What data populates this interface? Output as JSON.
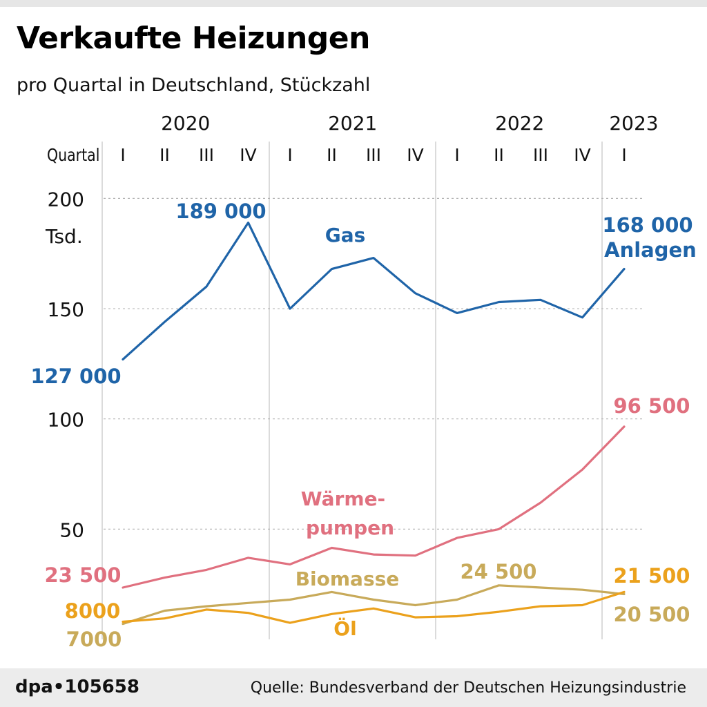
{
  "header": {
    "title": "Verkaufte Heizungen",
    "subtitle": "pro Quartal in Deutschland, Stückzahl"
  },
  "footer": {
    "credit": "dpa•105658",
    "source": "Quelle: Bundesverband der Deutschen Heizungsindustrie"
  },
  "chart_data": {
    "type": "line",
    "title": "Verkaufte Heizungen",
    "subtitle": "pro Quartal in Deutschland, Stückzahl",
    "quarter_axis_label": "Quartal",
    "years": [
      "2020",
      "2021",
      "2022",
      "2023"
    ],
    "categories": [
      "I",
      "II",
      "III",
      "IV",
      "I",
      "II",
      "III",
      "IV",
      "I",
      "II",
      "III",
      "IV",
      "I"
    ],
    "y_unit": "Tsd.",
    "ylim": [
      0,
      210
    ],
    "y_ticks": [
      50,
      100,
      150,
      200
    ],
    "grid": "dotted horizontal at ticks, vertical lines at year boundaries",
    "series": [
      {
        "name": "Gas",
        "color": "#1f64a8",
        "values": [
          127,
          144,
          160,
          189,
          150,
          168,
          173,
          157,
          148,
          153,
          154,
          146,
          168
        ]
      },
      {
        "name": "Wärme-pumpen",
        "color": "#e0707f",
        "values": [
          23.5,
          28,
          31.5,
          37,
          34,
          41.5,
          38.5,
          38,
          46,
          50,
          62,
          77,
          96.5
        ]
      },
      {
        "name": "Biomasse",
        "color": "#c8aa5a",
        "values": [
          7,
          13,
          15,
          16.5,
          18,
          21.5,
          18,
          15.5,
          18,
          24.5,
          23.5,
          22.5,
          20.5
        ]
      },
      {
        "name": "Öl",
        "color": "#eba11c",
        "values": [
          8,
          9.5,
          13.5,
          12,
          7.5,
          11.5,
          14,
          10,
          10.5,
          12.5,
          15,
          15.5,
          21.5
        ]
      }
    ],
    "annotations": [
      {
        "series": "Gas",
        "text": "127 000"
      },
      {
        "series": "Gas",
        "text": "189 000"
      },
      {
        "series": "Gas",
        "text": "168 000"
      },
      {
        "series": "Gas",
        "text": "Anlagen"
      },
      {
        "series": "Wärme-pumpen",
        "text": "23 500"
      },
      {
        "series": "Wärme-pumpen",
        "text": "96 500"
      },
      {
        "series": "Biomasse",
        "text": "7000"
      },
      {
        "series": "Biomasse",
        "text": "24 500"
      },
      {
        "series": "Biomasse",
        "text": "20 500"
      },
      {
        "series": "Öl",
        "text": "8000"
      },
      {
        "series": "Öl",
        "text": "21 500"
      }
    ]
  }
}
